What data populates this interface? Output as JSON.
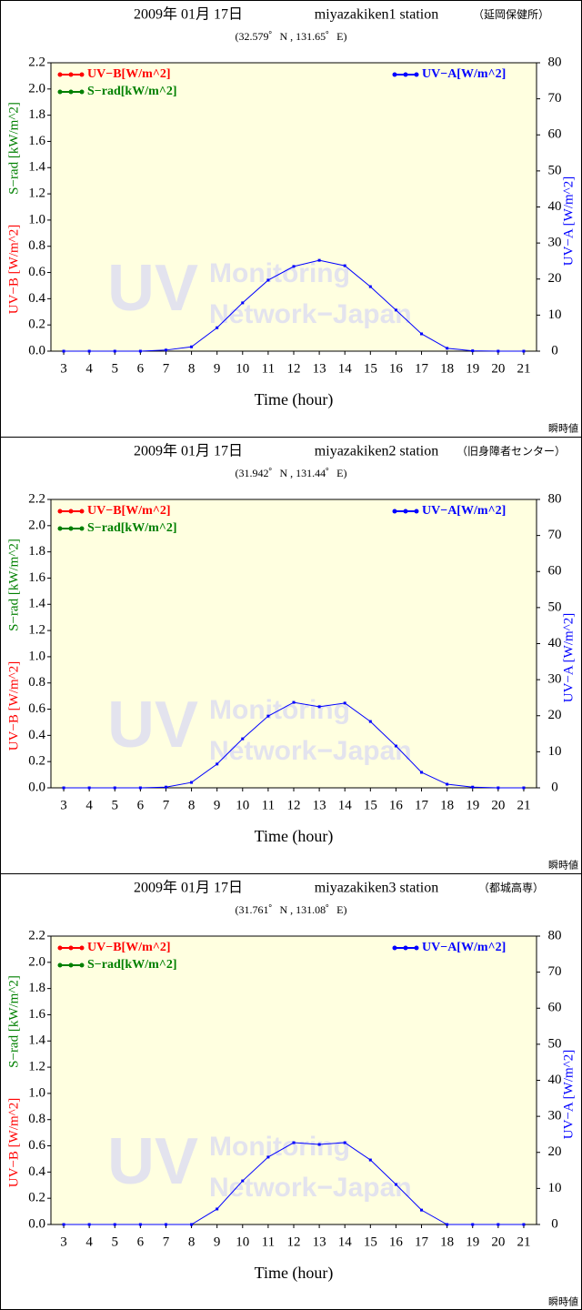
{
  "chart_data": [
    {
      "type": "line",
      "title": "2009年 01月 17日",
      "station": "miyazakiken1 station",
      "station_note": "（延岡保健所）",
      "subtitle": "(32.579゜N , 131.65゜E)",
      "xlabel": "Time (hour)",
      "ylabel": "UV−B [W/m^2]",
      "ylabel2": "S−rad [kW/m^2]",
      "y2label": "UV−A [W/m^2]",
      "footer": "瞬時値",
      "watermark": [
        "UV",
        "Monitoring",
        "Network−Japan"
      ],
      "grid": false,
      "x": [
        3,
        4,
        5,
        6,
        7,
        8,
        9,
        10,
        11,
        12,
        13,
        14,
        15,
        16,
        17,
        18,
        19,
        20,
        21
      ],
      "xlim": [
        2.5,
        21.5
      ],
      "xticks": [
        3,
        4,
        5,
        6,
        7,
        8,
        9,
        10,
        11,
        12,
        13,
        14,
        15,
        16,
        17,
        18,
        19,
        20,
        21
      ],
      "ylim": [
        0,
        2.2
      ],
      "yticks": [
        {
          "value": 0,
          "label": "0.0"
        },
        0.2,
        0.4,
        0.6,
        0.8,
        {
          "value": 1,
          "label": "1.0"
        },
        1.2,
        1.4,
        1.6,
        1.8,
        {
          "value": 2,
          "label": "2.0"
        },
        2.2
      ],
      "y2lim": [
        0,
        80
      ],
      "y2ticks": [
        0,
        10,
        20,
        30,
        40,
        50,
        60,
        70,
        80
      ],
      "series": [
        {
          "name": "UV−B[W/m^2]",
          "color": "#ff0000",
          "values": [
            null,
            null,
            null,
            null,
            null,
            null,
            null,
            null,
            null,
            null,
            null,
            null,
            null,
            null,
            null,
            null,
            null,
            null,
            null
          ]
        },
        {
          "name": "S−rad[kW/m^2]",
          "color": "#008000",
          "values": [
            null,
            null,
            null,
            null,
            null,
            null,
            null,
            null,
            null,
            null,
            null,
            null,
            null,
            null,
            null,
            null,
            null,
            null,
            null
          ]
        },
        {
          "name": "UV−A[W/m^2]",
          "color": "#0000ff",
          "axis": "y2",
          "values": [
            0,
            0,
            0,
            0,
            0.3,
            1.2,
            6.5,
            13.4,
            19.7,
            23.5,
            25.2,
            23.7,
            17.9,
            11.4,
            4.8,
            0.8,
            0.1,
            0,
            0
          ]
        }
      ]
    },
    {
      "type": "line",
      "title": "2009年 01月 17日",
      "station": "miyazakiken2 station",
      "station_note": "（旧身障者センター）",
      "subtitle": "(31.942゜N , 131.44゜E)",
      "xlabel": "Time (hour)",
      "ylabel": "UV−B [W/m^2]",
      "ylabel2": "S−rad [kW/m^2]",
      "y2label": "UV−A [W/m^2]",
      "footer": "瞬時値",
      "watermark": [
        "UV",
        "Monitoring",
        "Network−Japan"
      ],
      "grid": false,
      "x": [
        3,
        4,
        5,
        6,
        7,
        8,
        9,
        10,
        11,
        12,
        13,
        14,
        15,
        16,
        17,
        18,
        19,
        20,
        21
      ],
      "xlim": [
        2.5,
        21.5
      ],
      "xticks": [
        3,
        4,
        5,
        6,
        7,
        8,
        9,
        10,
        11,
        12,
        13,
        14,
        15,
        16,
        17,
        18,
        19,
        20,
        21
      ],
      "ylim": [
        0,
        2.2
      ],
      "yticks": [
        {
          "value": 0,
          "label": "0.0"
        },
        0.2,
        0.4,
        0.6,
        0.8,
        {
          "value": 1,
          "label": "1.0"
        },
        1.2,
        1.4,
        1.6,
        1.8,
        {
          "value": 2,
          "label": "2.0"
        },
        2.2
      ],
      "y2lim": [
        0,
        80
      ],
      "y2ticks": [
        0,
        10,
        20,
        30,
        40,
        50,
        60,
        70,
        80
      ],
      "series": [
        {
          "name": "UV−B[W/m^2]",
          "color": "#ff0000",
          "values": [
            null,
            null,
            null,
            null,
            null,
            null,
            null,
            null,
            null,
            null,
            null,
            null,
            null,
            null,
            null,
            null,
            null,
            null,
            null
          ]
        },
        {
          "name": "S−rad[kW/m^2]",
          "color": "#008000",
          "values": [
            null,
            null,
            null,
            null,
            null,
            null,
            null,
            null,
            null,
            null,
            null,
            null,
            null,
            null,
            null,
            null,
            null,
            null,
            null
          ]
        },
        {
          "name": "UV−A[W/m^2]",
          "color": "#0000ff",
          "axis": "y2",
          "values": [
            0,
            0,
            0,
            0,
            0.2,
            1.5,
            6.6,
            13.6,
            19.9,
            23.7,
            22.5,
            23.5,
            18.4,
            11.6,
            4.3,
            1,
            0.2,
            0,
            0
          ]
        }
      ]
    },
    {
      "type": "line",
      "title": "2009年 01月 17日",
      "station": "miyazakiken3 station",
      "station_note": "（都城高専）",
      "subtitle": "(31.761゜N , 131.08゜E)",
      "xlabel": "Time (hour)",
      "ylabel": "UV−B [W/m^2]",
      "ylabel2": "S−rad [kW/m^2]",
      "y2label": "UV−A [W/m^2]",
      "footer": "瞬時値",
      "watermark": [
        "UV",
        "Monitoring",
        "Network−Japan"
      ],
      "grid": false,
      "x": [
        3,
        4,
        5,
        6,
        7,
        8,
        9,
        10,
        11,
        12,
        13,
        14,
        15,
        16,
        17,
        18,
        19,
        20,
        21
      ],
      "xlim": [
        2.5,
        21.5
      ],
      "xticks": [
        3,
        4,
        5,
        6,
        7,
        8,
        9,
        10,
        11,
        12,
        13,
        14,
        15,
        16,
        17,
        18,
        19,
        20,
        21
      ],
      "ylim": [
        0,
        2.2
      ],
      "yticks": [
        {
          "value": 0,
          "label": "0.0"
        },
        0.2,
        0.4,
        0.6,
        0.8,
        {
          "value": 1,
          "label": "1.0"
        },
        1.2,
        1.4,
        1.6,
        1.8,
        {
          "value": 2,
          "label": "2.0"
        },
        2.2
      ],
      "y2lim": [
        0,
        80
      ],
      "y2ticks": [
        0,
        10,
        20,
        30,
        40,
        50,
        60,
        70,
        80
      ],
      "series": [
        {
          "name": "UV−B[W/m^2]",
          "color": "#ff0000",
          "values": [
            null,
            null,
            null,
            null,
            null,
            null,
            null,
            null,
            null,
            null,
            null,
            null,
            null,
            null,
            null,
            null,
            null,
            null,
            null
          ]
        },
        {
          "name": "S−rad[kW/m^2]",
          "color": "#008000",
          "values": [
            null,
            null,
            null,
            null,
            null,
            null,
            null,
            null,
            null,
            null,
            null,
            null,
            null,
            null,
            null,
            null,
            null,
            null,
            null
          ]
        },
        {
          "name": "UV−A[W/m^2]",
          "color": "#0000ff",
          "axis": "y2",
          "values": [
            0,
            0,
            0,
            0,
            0,
            0,
            4.3,
            12.1,
            18.7,
            22.7,
            22.2,
            22.7,
            17.9,
            11.1,
            4,
            0,
            0,
            0,
            0
          ]
        }
      ]
    }
  ]
}
